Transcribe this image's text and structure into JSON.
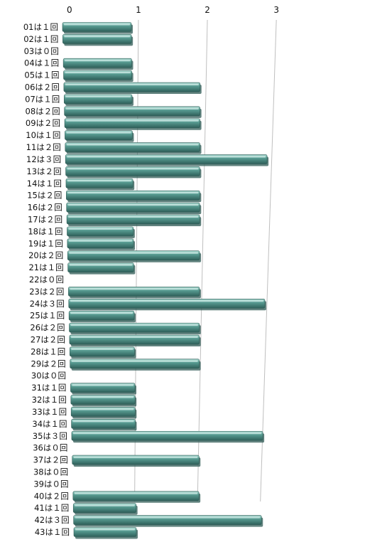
{
  "chart_data": {
    "type": "bar",
    "orientation": "horizontal",
    "categories": [
      "01は１回",
      "02は１回",
      "03は０回",
      "04は１回",
      "05は１回",
      "06は２回",
      "07は１回",
      "08は２回",
      "09は２回",
      "10は１回",
      "11は２回",
      "12は３回",
      "13は２回",
      "14は１回",
      "15は２回",
      "16は２回",
      "17は２回",
      "18は１回",
      "19は１回",
      "20は２回",
      "21は１回",
      "22は０回",
      "23は２回",
      "24は３回",
      "25は１回",
      "26は２回",
      "27は２回",
      "28は１回",
      "29は２回",
      "30は０回",
      "31は１回",
      "32は１回",
      "33は１回",
      "34は１回",
      "35は３回",
      "36は０回",
      "37は２回",
      "38は０回",
      "39は０回",
      "40は２回",
      "41は１回",
      "42は３回",
      "43は１回"
    ],
    "values": [
      1,
      1,
      0,
      1,
      1,
      2,
      1,
      2,
      2,
      1,
      2,
      3,
      2,
      1,
      2,
      2,
      2,
      1,
      1,
      2,
      1,
      0,
      2,
      3,
      1,
      2,
      2,
      1,
      2,
      0,
      1,
      1,
      1,
      1,
      3,
      0,
      2,
      0,
      0,
      2,
      1,
      3,
      1
    ],
    "xticks": [
      "0",
      "1",
      "2",
      "3"
    ],
    "xlim": [
      0,
      3
    ],
    "grid": true,
    "legend": "none",
    "colors": {
      "bar": "#4f8f86",
      "bar_light": "#86c2b8",
      "bar_dark": "#2d5a54",
      "grid": "#bfbfbf"
    }
  }
}
